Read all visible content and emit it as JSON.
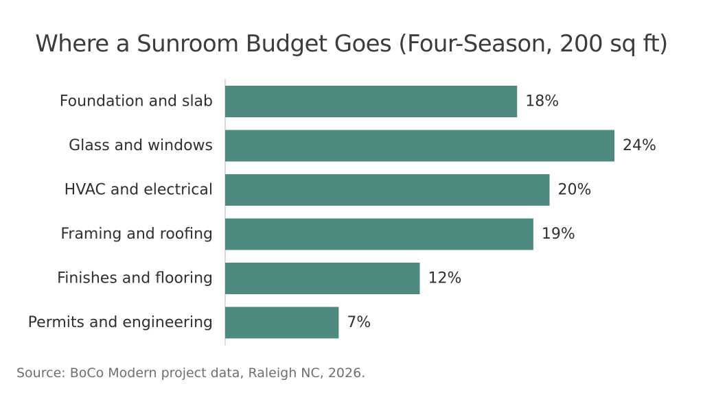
{
  "colors": {
    "bar": "#4e8a80",
    "axis": "#cfcfcf",
    "text": "#2f2f2f",
    "title": "#3a3c3d",
    "source": "#6f6f6f"
  },
  "chart_data": {
    "type": "bar",
    "orientation": "horizontal",
    "title": "Where a Sunroom Budget Goes (Four-Season, 200 sq ft)",
    "categories": [
      "Foundation and slab",
      "Glass and windows",
      "HVAC and electrical",
      "Framing and roofing",
      "Finishes and flooring",
      "Permits and engineering"
    ],
    "values": [
      18,
      24,
      20,
      19,
      12,
      7
    ],
    "value_labels": [
      "18%",
      "24%",
      "20%",
      "19%",
      "12%",
      "7%"
    ],
    "xlim": [
      0,
      24
    ],
    "grid": false,
    "legend": "none",
    "source": "Source: BoCo Modern project data, Raleigh NC, 2026."
  }
}
